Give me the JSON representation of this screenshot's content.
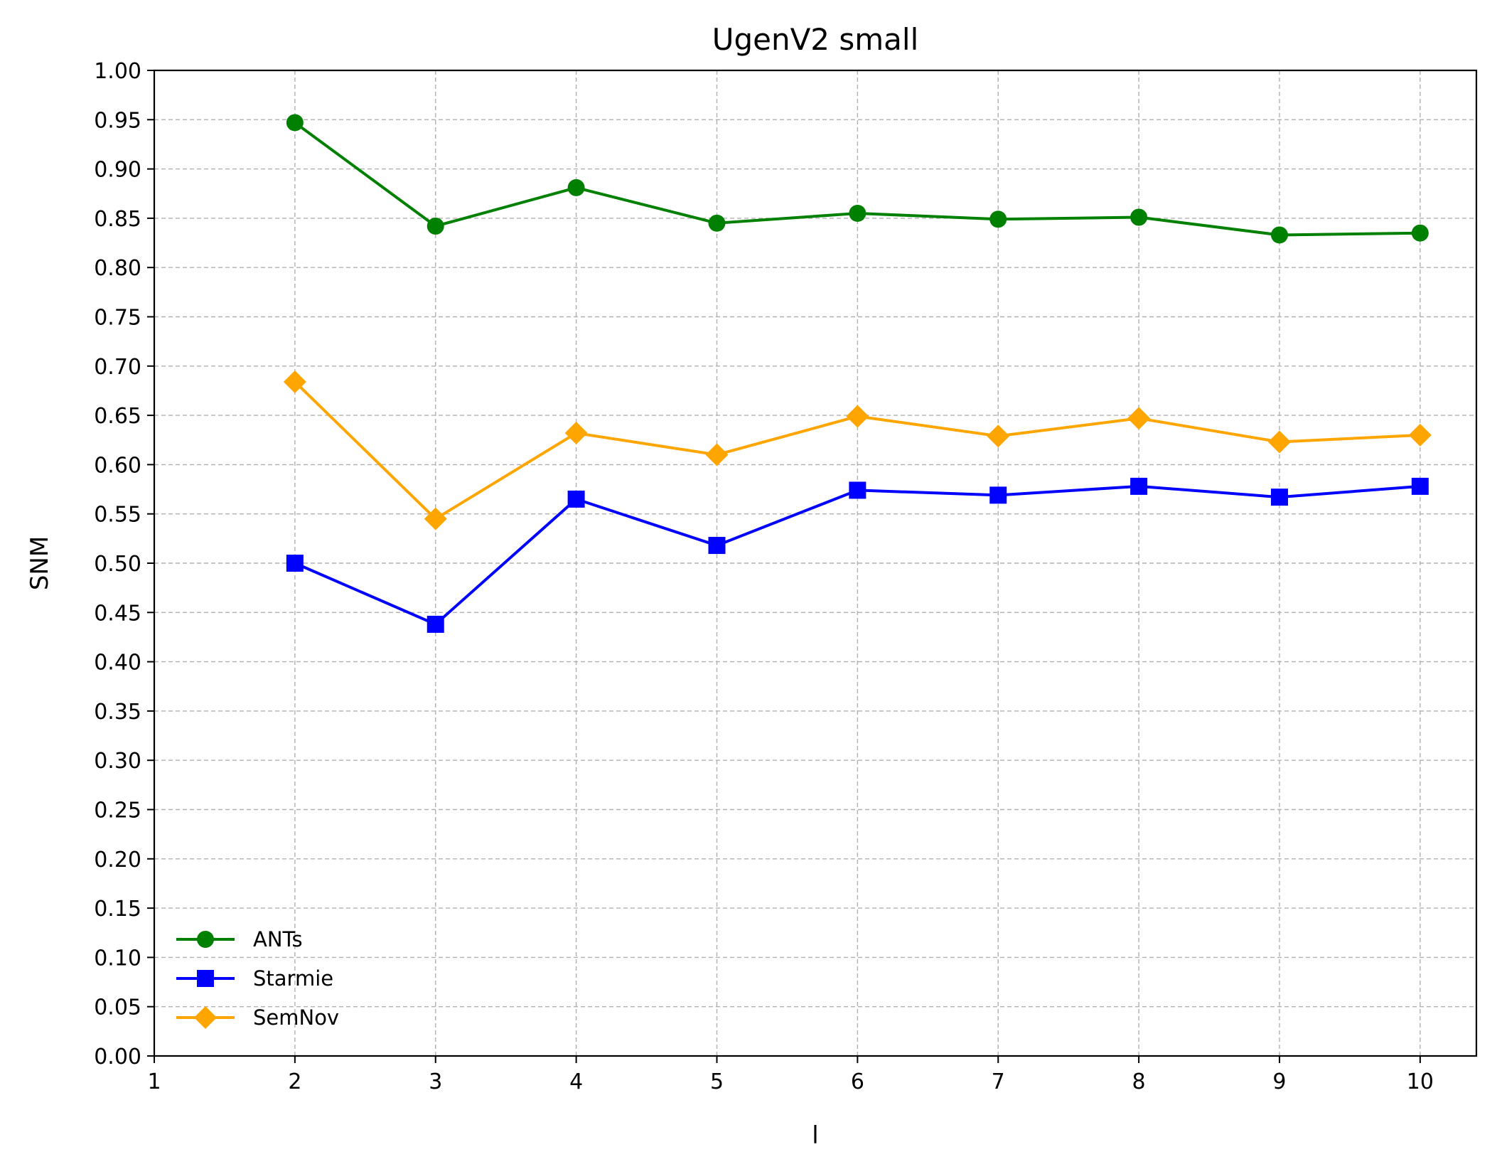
{
  "chart_data": {
    "type": "line",
    "title": "UgenV2 small",
    "xlabel": "l",
    "ylabel": "SNM",
    "xlim": [
      1,
      10.4
    ],
    "ylim": [
      0,
      1
    ],
    "xticks": [
      1,
      2,
      3,
      4,
      5,
      6,
      7,
      8,
      9,
      10
    ],
    "yticks": [
      0.0,
      0.05,
      0.1,
      0.15,
      0.2,
      0.25,
      0.3,
      0.35,
      0.4,
      0.45,
      0.5,
      0.55,
      0.6,
      0.65,
      0.7,
      0.75,
      0.8,
      0.85,
      0.9,
      0.95,
      1.0
    ],
    "grid": true,
    "legend_position": "lower-left",
    "x": [
      2,
      3,
      4,
      5,
      6,
      7,
      8,
      9,
      10
    ],
    "series": [
      {
        "name": "ANTs",
        "color": "#008000",
        "marker": "circle",
        "values": [
          0.947,
          0.842,
          0.881,
          0.845,
          0.855,
          0.849,
          0.851,
          0.833,
          0.835
        ]
      },
      {
        "name": "Starmie",
        "color": "#0000ff",
        "marker": "square",
        "values": [
          0.5,
          0.438,
          0.565,
          0.518,
          0.574,
          0.569,
          0.578,
          0.567,
          0.578
        ]
      },
      {
        "name": "SemNov",
        "color": "#ffa500",
        "marker": "diamond",
        "values": [
          0.684,
          0.545,
          0.632,
          0.61,
          0.649,
          0.629,
          0.647,
          0.623,
          0.63
        ]
      }
    ]
  }
}
